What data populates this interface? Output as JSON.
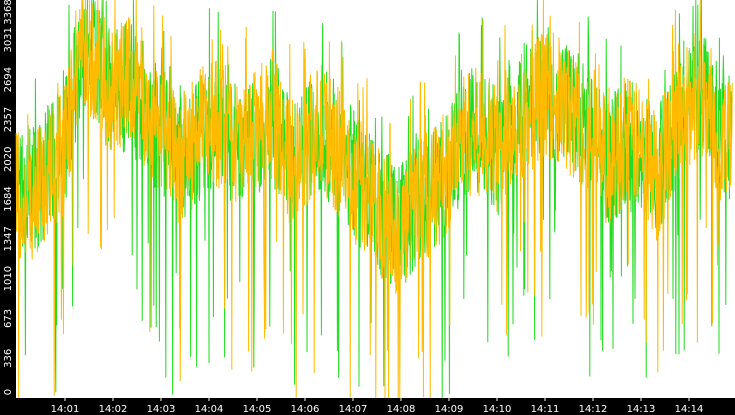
{
  "chart_data": {
    "type": "line",
    "title": "",
    "xlabel": "",
    "ylabel": "",
    "ylim": [
      0,
      3368
    ],
    "y_ticks": [
      0,
      336,
      673,
      1010,
      1347,
      1684,
      2020,
      2357,
      2694,
      3031,
      3368
    ],
    "x_ticks": [
      "14:01",
      "14:02",
      "14:03",
      "14:04",
      "14:05",
      "14:06",
      "14:07",
      "14:08",
      "14:09",
      "14:10",
      "14:11",
      "14:12",
      "14:13",
      "14:14"
    ],
    "grid": false,
    "legend": "none",
    "series": [
      {
        "color": "#22dd22",
        "x": [
          "14:00:20",
          "14:01:00",
          "14:01:20",
          "14:01:40",
          "14:02:00",
          "14:02:20",
          "14:02:40",
          "14:03:00",
          "14:03:20",
          "14:03:40",
          "14:04:00",
          "14:04:20",
          "14:04:40",
          "14:05:00",
          "14:05:20",
          "14:05:40",
          "14:06:00",
          "14:06:20",
          "14:06:40",
          "14:07:00",
          "14:07:20",
          "14:07:40",
          "14:08:00",
          "14:08:20",
          "14:08:40",
          "14:09:00",
          "14:09:20",
          "14:09:40",
          "14:10:00",
          "14:10:20",
          "14:10:40",
          "14:11:00",
          "14:11:20",
          "14:11:40",
          "14:12:00",
          "14:12:20",
          "14:12:40",
          "14:13:00",
          "14:13:20",
          "14:13:40",
          "14:14:00",
          "14:14:20",
          "14:14:40"
        ],
        "y": [
          1750,
          2150,
          3000,
          2850,
          2550,
          2650,
          2450,
          2250,
          2050,
          2100,
          2300,
          2250,
          2150,
          2200,
          2350,
          2050,
          2100,
          2250,
          2150,
          1900,
          1700,
          1550,
          1450,
          1650,
          1800,
          1900,
          2200,
          2300,
          2050,
          2400,
          2500,
          2650,
          2450,
          2400,
          2250,
          2000,
          2150,
          2050,
          1900,
          2250,
          2500,
          2650,
          2200
        ]
      },
      {
        "color": "#ffbb00",
        "x": [
          "14:00:20",
          "14:01:00",
          "14:01:20",
          "14:01:40",
          "14:02:00",
          "14:02:20",
          "14:02:40",
          "14:03:00",
          "14:03:20",
          "14:03:40",
          "14:04:00",
          "14:04:20",
          "14:04:40",
          "14:05:00",
          "14:05:20",
          "14:05:40",
          "14:06:00",
          "14:06:20",
          "14:06:40",
          "14:07:00",
          "14:07:20",
          "14:07:40",
          "14:08:00",
          "14:08:20",
          "14:08:40",
          "14:09:00",
          "14:09:20",
          "14:09:40",
          "14:10:00",
          "14:10:20",
          "14:10:40",
          "14:11:00",
          "14:11:20",
          "14:11:40",
          "14:12:00",
          "14:12:20",
          "14:12:40",
          "14:13:00",
          "14:13:20",
          "14:13:40",
          "14:14:00",
          "14:14:20",
          "14:14:40"
        ],
        "y": [
          1700,
          2100,
          3050,
          2800,
          2600,
          2700,
          2400,
          2300,
          2000,
          2150,
          2350,
          2300,
          2100,
          2250,
          2400,
          2000,
          2150,
          2300,
          2100,
          1850,
          1750,
          1500,
          1400,
          1700,
          1750,
          1950,
          2250,
          2250,
          2100,
          2350,
          2450,
          2600,
          2500,
          2350,
          2300,
          1950,
          2200,
          2100,
          1850,
          2300,
          2450,
          2600,
          2150
        ]
      }
    ]
  }
}
